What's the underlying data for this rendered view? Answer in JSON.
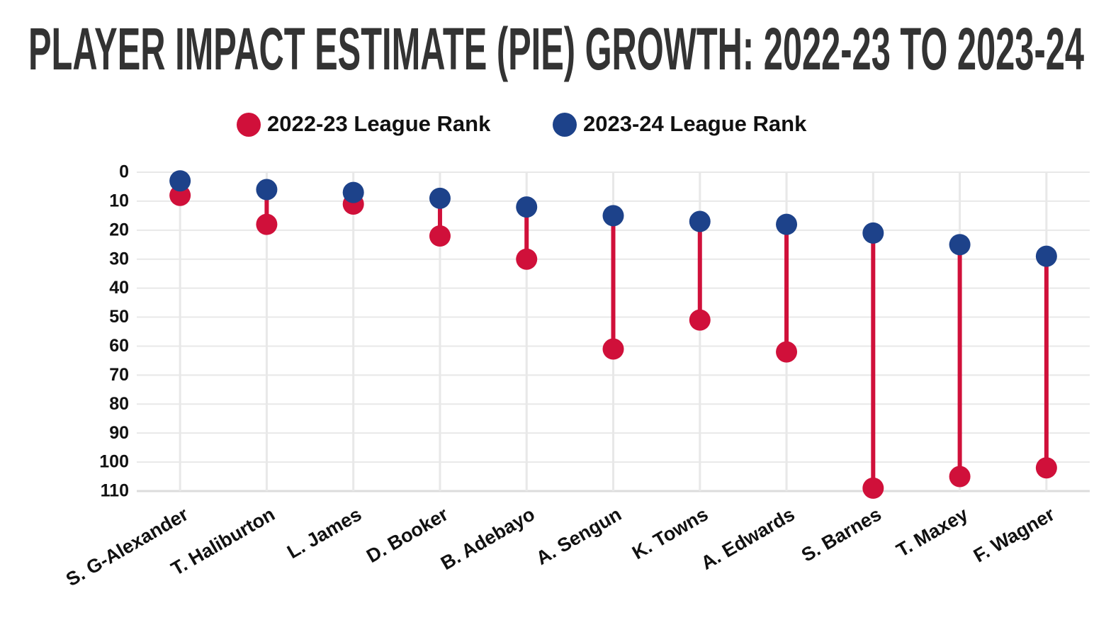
{
  "chart_data": {
    "type": "dumbbell",
    "title": "PLAYER IMPACT ESTIMATE (PIE) GROWTH: 2022-23 TO 2023-24",
    "categories": [
      "S. G-Alexander",
      "T. Haliburton",
      "L. James",
      "D. Booker",
      "B. Adebayo",
      "A. Sengun",
      "K. Towns",
      "A. Edwards",
      "S. Barnes",
      "T. Maxey",
      "F. Wagner"
    ],
    "series": [
      {
        "name": "2022-23 League Rank",
        "color": "#d0103a",
        "values": [
          8,
          18,
          11,
          22,
          30,
          61,
          51,
          62,
          109,
          105,
          102
        ]
      },
      {
        "name": "2023-24 League Rank",
        "color": "#1d428a",
        "values": [
          3,
          6,
          7,
          9,
          12,
          15,
          17,
          18,
          21,
          25,
          29
        ]
      }
    ],
    "ylim": [
      0,
      110
    ],
    "yticks": [
      0,
      10,
      20,
      30,
      40,
      50,
      60,
      70,
      80,
      90,
      100,
      110
    ],
    "yreverse": true,
    "grid": true
  }
}
